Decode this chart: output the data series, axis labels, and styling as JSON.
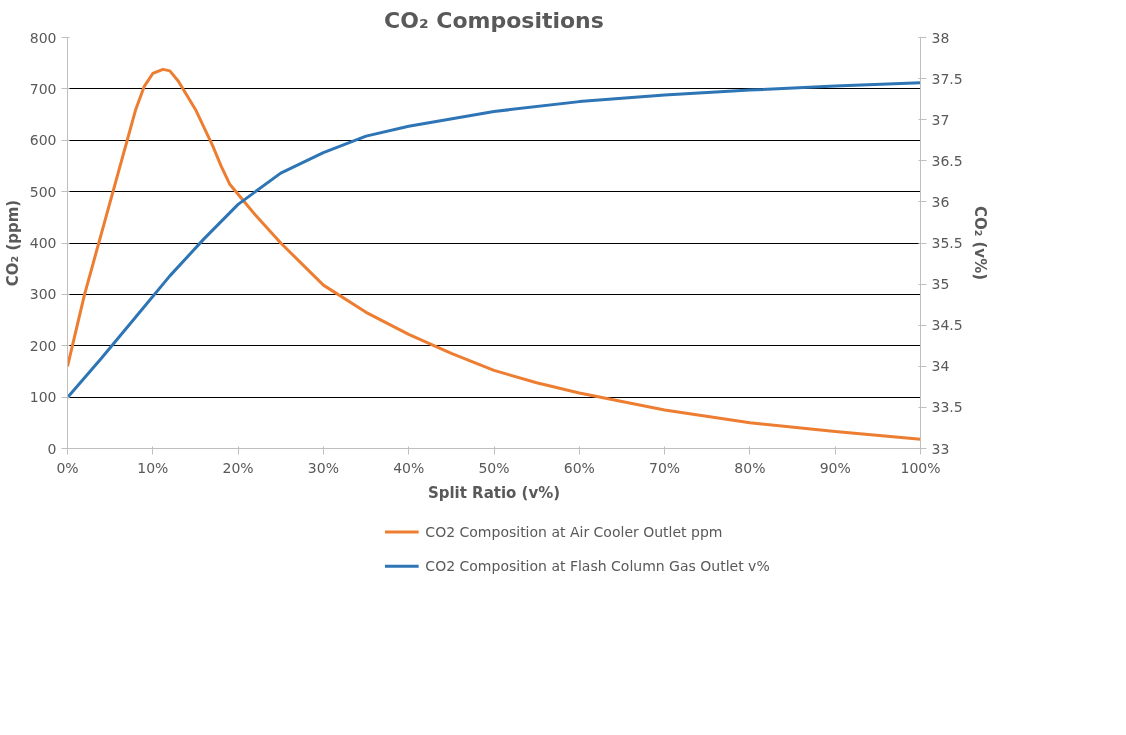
{
  "chart_data": {
    "type": "line",
    "title": "CO₂ Compositions",
    "xlabel": "Split Ratio (v%)",
    "ylabel": "CO₂ (ppm)",
    "y2label": "CO₂ (v%)",
    "xlim": [
      0,
      100
    ],
    "xticks": [
      {
        "value": 0,
        "label": "0%"
      },
      {
        "value": 10,
        "label": "10%"
      },
      {
        "value": 20,
        "label": "20%"
      },
      {
        "value": 30,
        "label": "30%"
      },
      {
        "value": 40,
        "label": "40%"
      },
      {
        "value": 50,
        "label": "50%"
      },
      {
        "value": 60,
        "label": "60%"
      },
      {
        "value": 70,
        "label": "70%"
      },
      {
        "value": 80,
        "label": "80%"
      },
      {
        "value": 90,
        "label": "90%"
      },
      {
        "value": 100,
        "label": "100%"
      }
    ],
    "ylim": [
      0,
      800
    ],
    "yticks": [
      0,
      100,
      200,
      300,
      400,
      500,
      600,
      700,
      800
    ],
    "y2lim": [
      33,
      38
    ],
    "y2ticks": [
      33,
      33.5,
      34,
      34.5,
      35,
      35.5,
      36,
      36.5,
      37,
      37.5,
      38
    ],
    "grid": "y",
    "legend": "bottom",
    "line_style": "solid",
    "marker": "none",
    "series": [
      {
        "name": "CO2 Composition at Air Cooler Outlet ppm",
        "color": "#ed7d31",
        "x": [
          0,
          2,
          3,
          5,
          7,
          8,
          9,
          10,
          11.2,
          12,
          13,
          15,
          17,
          18,
          19,
          20,
          22,
          25,
          30,
          35,
          40,
          45,
          50,
          55,
          60,
          70,
          80,
          90,
          100
        ],
        "values": [
          160,
          300,
          360,
          480,
          600,
          660,
          705,
          730,
          738,
          735,
          715,
          660,
          590,
          550,
          515,
          495,
          455,
          400,
          318,
          265,
          222,
          185,
          152,
          128,
          108,
          75,
          50,
          33,
          18
        ]
      },
      {
        "name": "CO2 Composition at Flash Column Gas Outlet v%",
        "color": "#2e75b6",
        "axis": "y2",
        "x": [
          0,
          4,
          8,
          12,
          16,
          20,
          25,
          30,
          35,
          40,
          50,
          60,
          70,
          80,
          90,
          100
        ],
        "values": [
          33.62,
          34.1,
          34.6,
          35.1,
          35.55,
          35.97,
          36.35,
          36.6,
          36.8,
          36.92,
          37.1,
          37.22,
          37.3,
          37.36,
          37.41,
          37.45
        ]
      }
    ]
  }
}
